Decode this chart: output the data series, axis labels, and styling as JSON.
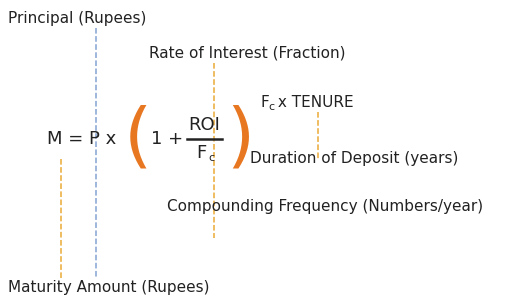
{
  "bg_color": "#ffffff",
  "dark": "#222222",
  "orange": "#e87722",
  "blue_dashed": "#7799cc",
  "orange_dashed": "#e8a020",
  "figsize": [
    5.19,
    3.07
  ],
  "dpi": 100,
  "labels": {
    "principal": "Principal (Rupees)",
    "roi": "Rate of Interest (Fraction)",
    "fc_tenure": "F",
    "fc_tenure_sub": "c",
    "fc_tenure_rest": " x TENURE",
    "duration": "Duration of Deposit (years)",
    "compounding": "Compounding Frequency (Numbers/year)",
    "maturity": "Maturity Amount (Rupees)"
  }
}
